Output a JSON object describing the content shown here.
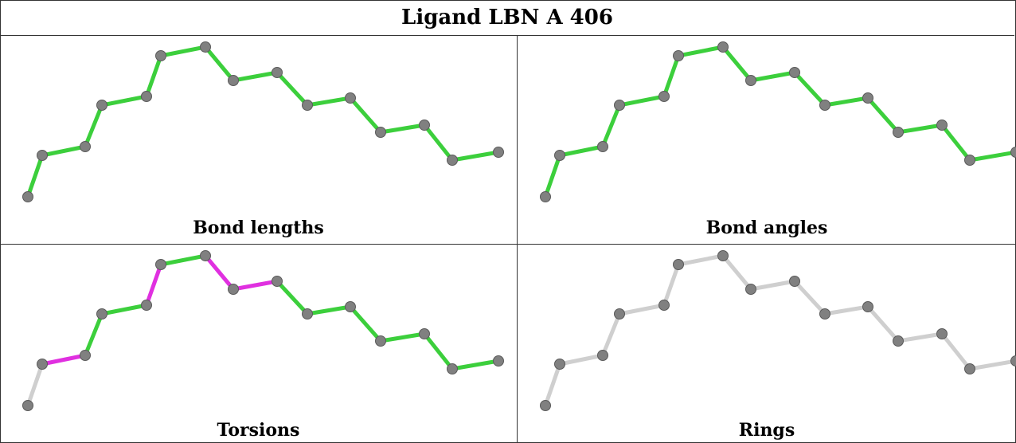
{
  "title": "Ligand LBN A 406",
  "colors": {
    "ok": "#3ccf3c",
    "outlier": "#e030e0",
    "none": "#cfcfcf",
    "atom": "#808080"
  },
  "panels": [
    {
      "caption": "Bond lengths",
      "bonds": [
        "ok",
        "ok",
        "ok",
        "ok",
        "ok",
        "ok",
        "ok",
        "ok",
        "ok",
        "ok",
        "ok",
        "ok",
        "ok",
        "ok",
        "ok",
        "ok"
      ]
    },
    {
      "caption": "Bond angles",
      "bonds": [
        "ok",
        "ok",
        "ok",
        "ok",
        "ok",
        "ok",
        "ok",
        "ok",
        "ok",
        "ok",
        "ok",
        "ok",
        "ok",
        "ok",
        "ok",
        "ok"
      ]
    },
    {
      "caption": "Torsions",
      "bonds": [
        "none",
        "outlier",
        "ok",
        "ok",
        "outlier",
        "ok",
        "outlier",
        "outlier",
        "ok",
        "ok",
        "ok",
        "ok",
        "ok",
        "ok",
        "none",
        "none"
      ]
    },
    {
      "caption": "Rings",
      "bonds": [
        "none",
        "none",
        "none",
        "none",
        "none",
        "none",
        "none",
        "none",
        "none",
        "none",
        "none",
        "none",
        "none",
        "none",
        "none",
        "none"
      ]
    }
  ]
}
